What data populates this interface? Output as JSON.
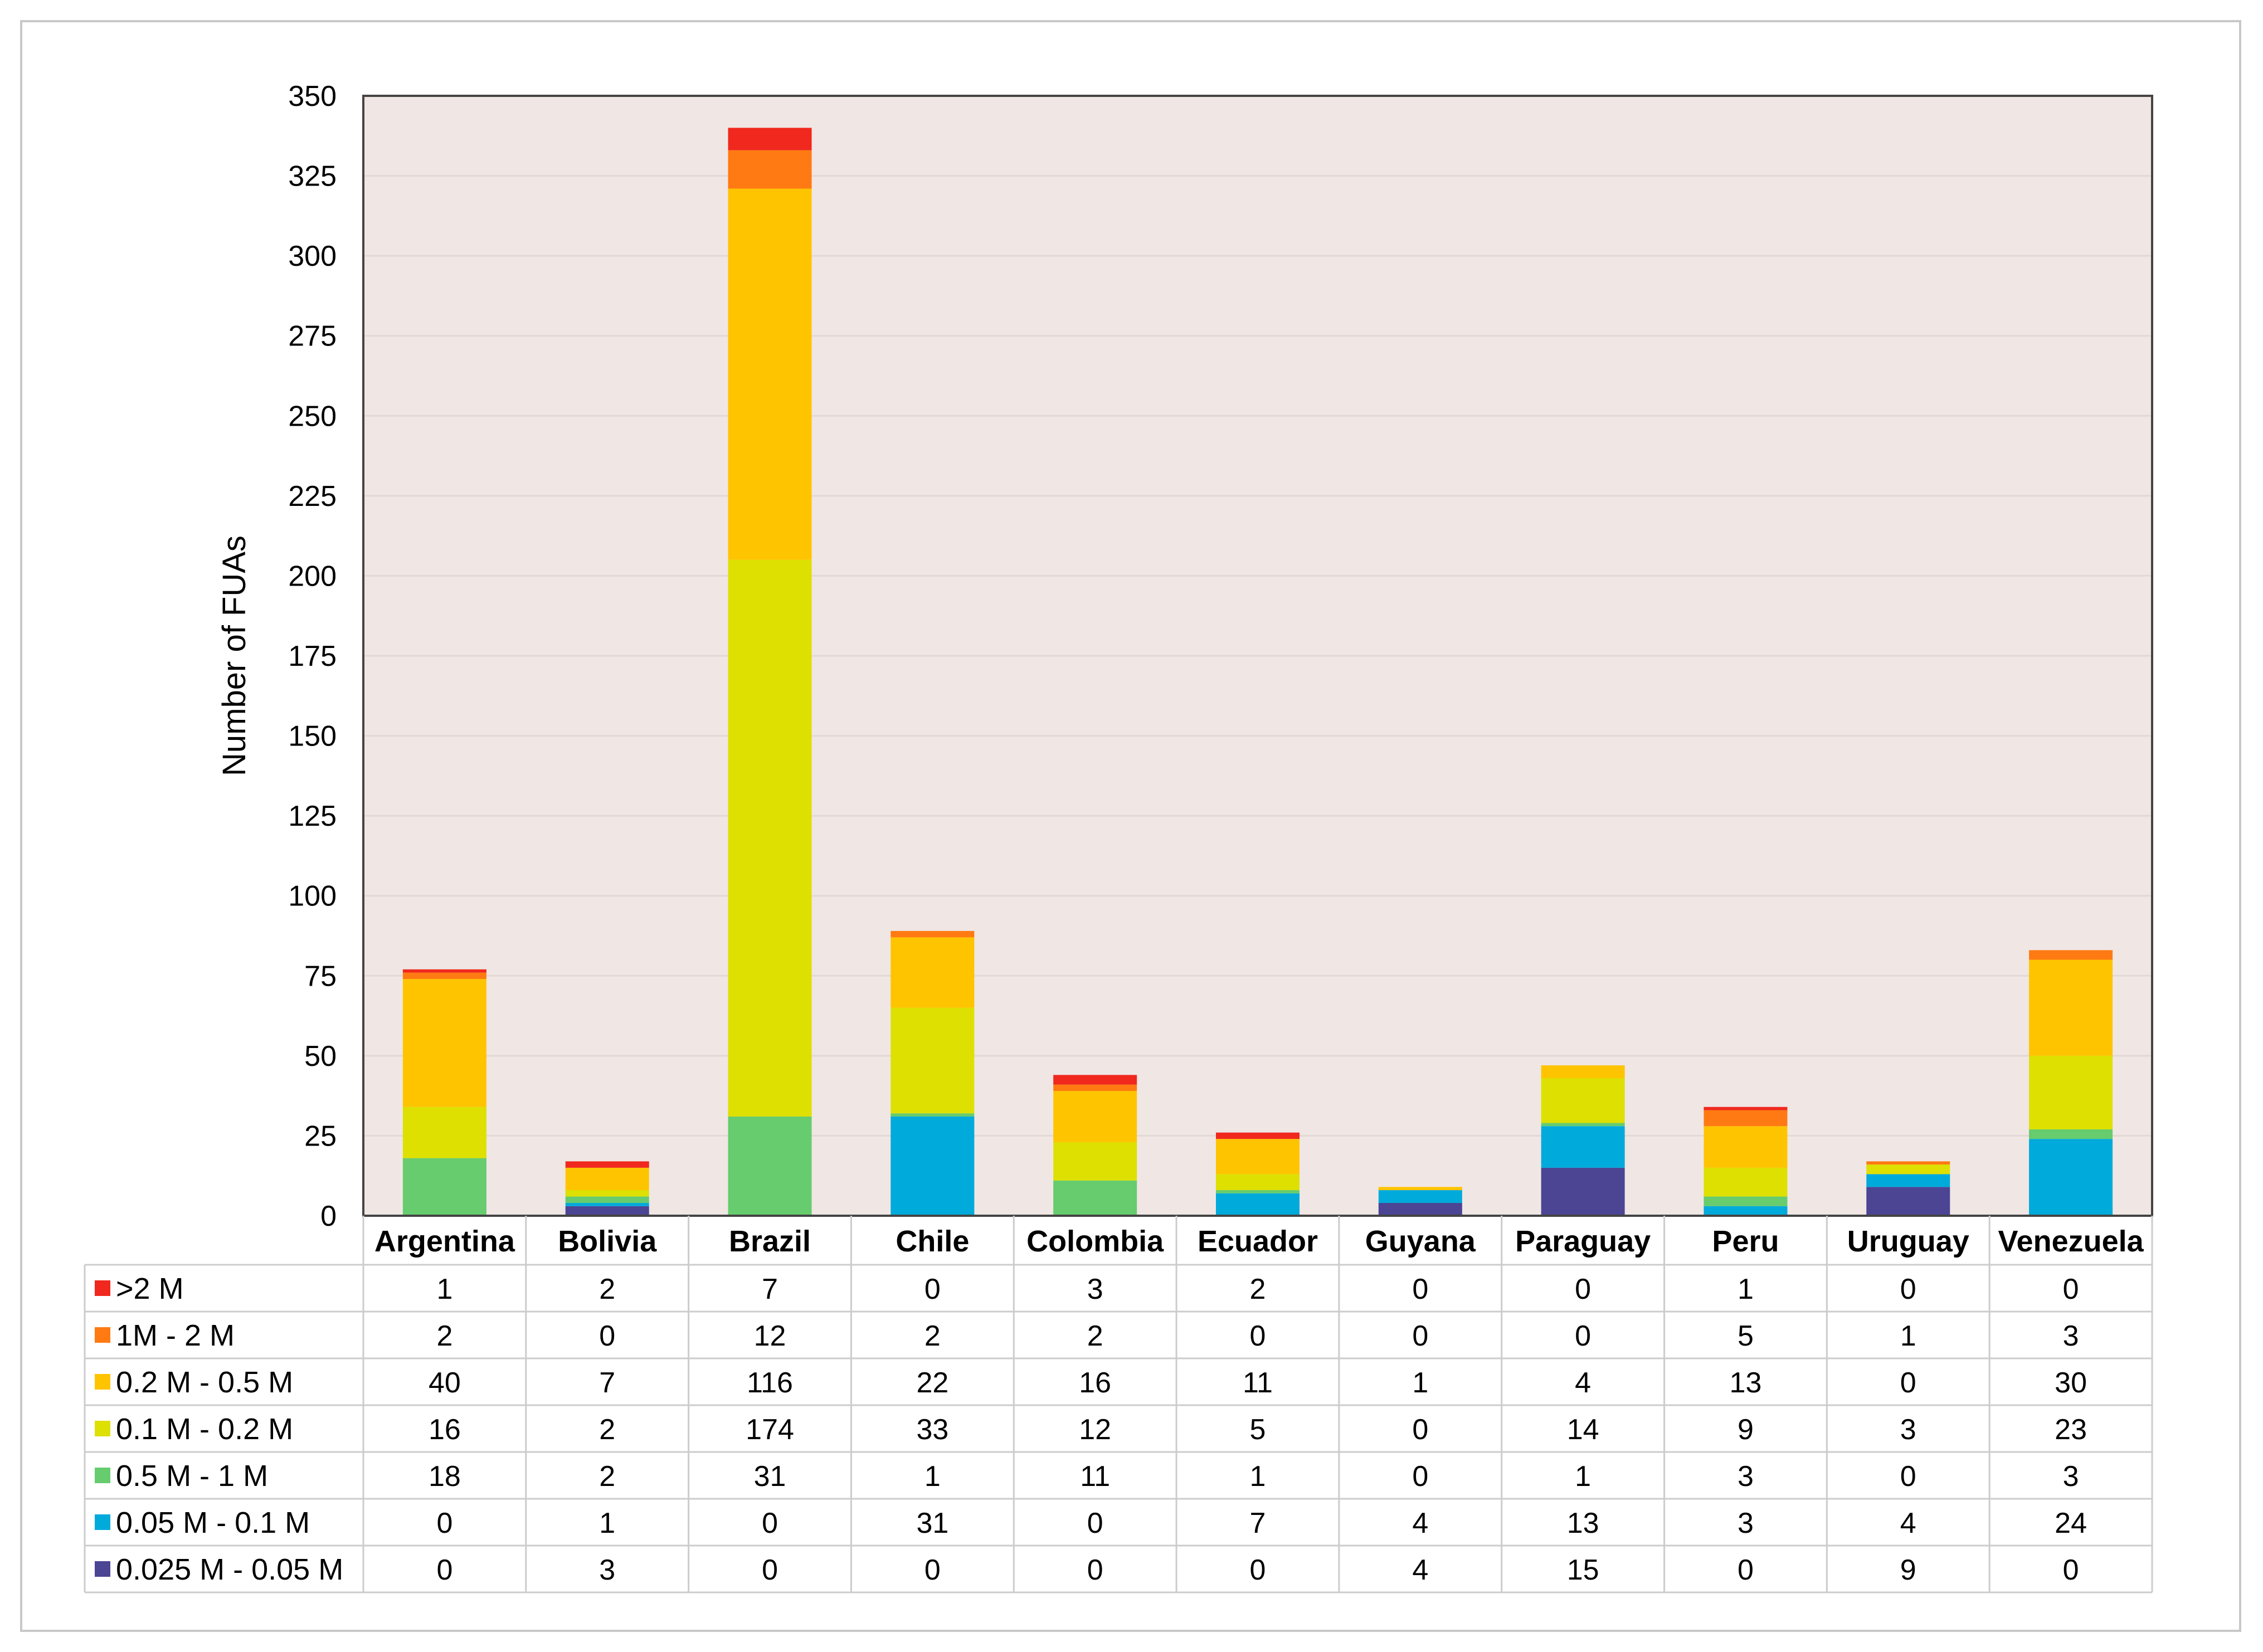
{
  "chart_data": {
    "type": "bar",
    "stacked": true,
    "title": "",
    "xlabel": "",
    "ylabel": "Number of FUAs",
    "ylim": [
      0,
      350
    ],
    "yticks": [
      0,
      25,
      50,
      75,
      100,
      125,
      150,
      175,
      200,
      225,
      250,
      275,
      300,
      325,
      350
    ],
    "grid": true,
    "legend": "data-table-left",
    "categories": [
      "Argentina",
      "Bolivia",
      "Brazil",
      "Chile",
      "Colombia",
      "Ecuador",
      "Guyana",
      "Paraguay",
      "Peru",
      "Uruguay",
      "Venezuela"
    ],
    "series": [
      {
        "name": "0.025 M - 0.05 M",
        "color": "#4b4594",
        "values": [
          0,
          3,
          0,
          0,
          0,
          0,
          4,
          15,
          0,
          9,
          0
        ]
      },
      {
        "name": "0.05 M - 0.1 M",
        "color": "#00aadb",
        "values": [
          0,
          1,
          0,
          31,
          0,
          7,
          4,
          13,
          3,
          4,
          24
        ]
      },
      {
        "name": "0.5 M - 1 M",
        "color": "#66cc6e",
        "values": [
          18,
          2,
          31,
          1,
          11,
          1,
          0,
          1,
          3,
          0,
          3
        ]
      },
      {
        "name": "0.1 M - 0.2 M",
        "color": "#dde000",
        "values": [
          16,
          2,
          174,
          33,
          12,
          5,
          0,
          14,
          9,
          3,
          23
        ]
      },
      {
        "name": "0.2 M - 0.5 M",
        "color": "#ffc400",
        "values": [
          40,
          7,
          116,
          22,
          16,
          11,
          1,
          4,
          13,
          0,
          30
        ]
      },
      {
        "name": "1M - 2 M",
        "color": "#ff7a12",
        "values": [
          2,
          0,
          12,
          2,
          2,
          0,
          0,
          0,
          5,
          1,
          3
        ]
      },
      {
        "name": ">2 M",
        "color": "#f0281e",
        "values": [
          1,
          2,
          7,
          0,
          3,
          2,
          0,
          0,
          1,
          0,
          0
        ]
      }
    ],
    "table_row_order": [
      ">2 M",
      "1M - 2 M",
      "0.2 M - 0.5 M",
      "0.1 M - 0.2 M",
      "0.5 M - 1 M",
      "0.05 M - 0.1 M",
      "0.025 M - 0.05 M"
    ],
    "colors": {
      "plot_background": "#f0e6e4",
      "grid": "#e2d8d6",
      "axis": "#444444",
      "table_border": "#cccccc"
    }
  }
}
